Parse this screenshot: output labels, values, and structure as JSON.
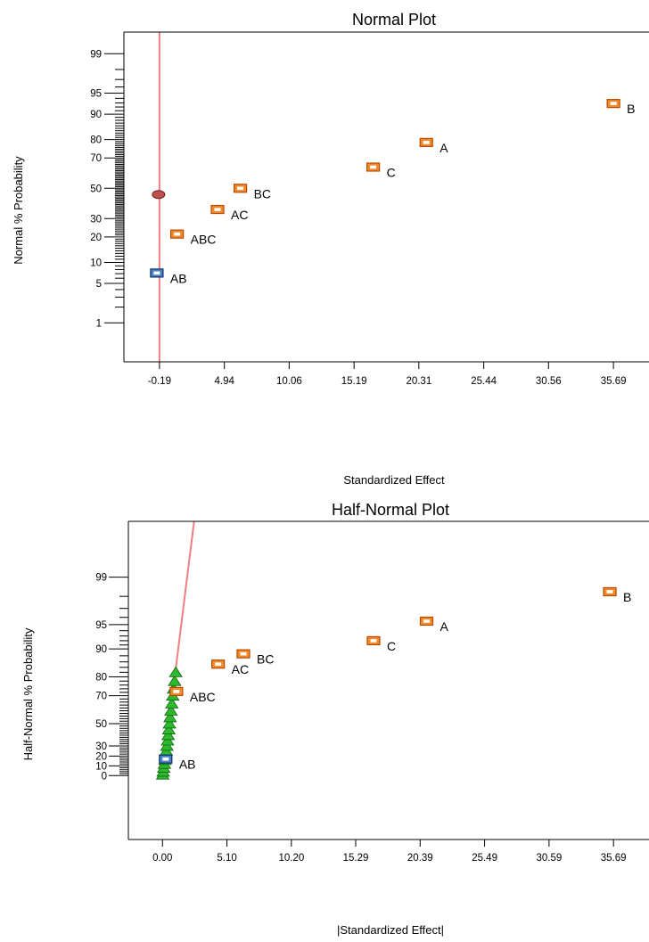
{
  "chart_data": [
    {
      "type": "scatter",
      "title": "Normal Plot",
      "xlabel": "Standardized Effect",
      "ylabel": "Normal % Probability",
      "xlim": [
        -3.0,
        38.5
      ],
      "x_ticks": [
        -0.19,
        4.94,
        10.06,
        15.19,
        20.31,
        25.44,
        30.56,
        35.69
      ],
      "x_tick_labels": [
        "-0.19",
        "4.94",
        "10.06",
        "15.19",
        "20.31",
        "25.44",
        "30.56",
        "35.69"
      ],
      "y_ticks": [
        1,
        5,
        10,
        20,
        30,
        50,
        70,
        80,
        90,
        95,
        99
      ],
      "y_tick_labels": [
        "1",
        "5",
        "10",
        "20",
        "30",
        "50",
        "70",
        "80",
        "90",
        "95",
        "99"
      ],
      "minor_y_ticks": [
        2,
        3,
        4,
        6,
        7,
        8,
        9,
        11,
        12,
        13,
        14,
        15,
        16,
        17,
        18,
        19,
        21,
        22,
        23,
        24,
        25,
        26,
        27,
        28,
        29,
        31,
        32,
        33,
        34,
        35,
        36,
        37,
        38,
        39,
        40,
        41,
        42,
        43,
        44,
        45,
        46,
        47,
        48,
        49,
        51,
        52,
        53,
        54,
        55,
        56,
        57,
        58,
        59,
        60,
        61,
        62,
        63,
        64,
        65,
        66,
        67,
        68,
        69,
        71,
        72,
        73,
        74,
        75,
        76,
        77,
        78,
        79,
        81,
        82,
        83,
        84,
        85,
        86,
        87,
        88,
        89,
        91,
        92,
        93,
        94,
        96,
        97,
        98
      ],
      "fit_line_x": -0.19,
      "center_point": {
        "x": -0.19,
        "y": 50
      },
      "points": [
        {
          "label": "B",
          "x": 35.69,
          "y": 92.86,
          "type": "positive"
        },
        {
          "label": "A",
          "x": 20.9,
          "y": 78.57,
          "type": "positive"
        },
        {
          "label": "C",
          "x": 16.7,
          "y": 64.29,
          "type": "positive"
        },
        {
          "label": "BC",
          "x": 6.2,
          "y": 50.0,
          "type": "positive"
        },
        {
          "label": "AC",
          "x": 4.4,
          "y": 35.71,
          "type": "positive"
        },
        {
          "label": "ABC",
          "x": 1.2,
          "y": 21.43,
          "type": "positive"
        },
        {
          "label": "AB",
          "x": -0.4,
          "y": 7.14,
          "type": "negative"
        }
      ]
    },
    {
      "type": "scatter",
      "title": "Half-Normal Plot",
      "xlabel": "|Standardized Effect|",
      "ylabel": "Half-Normal % Probability",
      "xlim": [
        -2.7,
        38.5
      ],
      "x_ticks": [
        0.0,
        5.1,
        10.2,
        15.29,
        20.39,
        25.49,
        30.59,
        35.69
      ],
      "x_tick_labels": [
        "0.00",
        "5.10",
        "10.20",
        "15.29",
        "20.39",
        "25.49",
        "30.59",
        "35.69"
      ],
      "y_ticks": [
        0,
        10,
        20,
        30,
        50,
        70,
        80,
        90,
        95,
        99
      ],
      "y_tick_labels": [
        "0",
        "10",
        "20",
        "30",
        "50",
        "70",
        "80",
        "90",
        "95",
        "99"
      ],
      "minor_y_ticks": [
        2,
        4,
        6,
        8,
        12,
        14,
        16,
        18,
        22,
        24,
        26,
        28,
        32,
        34,
        36,
        38,
        40,
        42,
        44,
        46,
        48,
        52,
        54,
        56,
        58,
        60,
        62,
        64,
        66,
        68,
        72,
        74,
        76,
        78,
        82,
        84,
        86,
        88,
        91,
        92,
        93,
        94,
        96,
        97,
        98
      ],
      "fit_line": [
        [
          0.0,
          0.0
        ],
        [
          2.5,
          99.97
        ]
      ],
      "error_points": [
        {
          "x": 0.02,
          "y": 1
        },
        {
          "x": 0.06,
          "y": 4
        },
        {
          "x": 0.1,
          "y": 8
        },
        {
          "x": 0.15,
          "y": 12
        },
        {
          "x": 0.2,
          "y": 16
        },
        {
          "x": 0.25,
          "y": 20
        },
        {
          "x": 0.3,
          "y": 25
        },
        {
          "x": 0.35,
          "y": 30
        },
        {
          "x": 0.4,
          "y": 35
        },
        {
          "x": 0.45,
          "y": 40
        },
        {
          "x": 0.5,
          "y": 45
        },
        {
          "x": 0.55,
          "y": 50
        },
        {
          "x": 0.6,
          "y": 55
        },
        {
          "x": 0.67,
          "y": 60
        },
        {
          "x": 0.74,
          "y": 65
        },
        {
          "x": 0.81,
          "y": 70
        },
        {
          "x": 0.88,
          "y": 74
        },
        {
          "x": 0.96,
          "y": 78
        },
        {
          "x": 1.05,
          "y": 82
        }
      ],
      "points": [
        {
          "label": "B",
          "x": 35.4,
          "y": 98.3,
          "type": "positive"
        },
        {
          "label": "A",
          "x": 20.9,
          "y": 95.5,
          "type": "positive"
        },
        {
          "label": "C",
          "x": 16.7,
          "y": 92.0,
          "type": "positive"
        },
        {
          "label": "BC",
          "x": 6.4,
          "y": 88.6,
          "type": "positive"
        },
        {
          "label": "AC",
          "x": 4.4,
          "y": 85.2,
          "type": "positive"
        },
        {
          "label": "ABC",
          "x": 1.1,
          "y": 72.5,
          "type": "positive"
        },
        {
          "label": "AB",
          "x": 0.25,
          "y": 17.0,
          "type": "negative"
        }
      ]
    }
  ],
  "colors": {
    "positive_fill": "#ffffff",
    "positive_stroke": "#b84a00",
    "positive_outer": "#f28a2a",
    "negative_stroke": "#0a2f70",
    "negative_outer": "#4b83c6",
    "fit_line": "#f08080",
    "center_fill": "#c05050",
    "error_fill": "#2db82d",
    "error_stroke": "#116611",
    "frame": "#000000"
  }
}
